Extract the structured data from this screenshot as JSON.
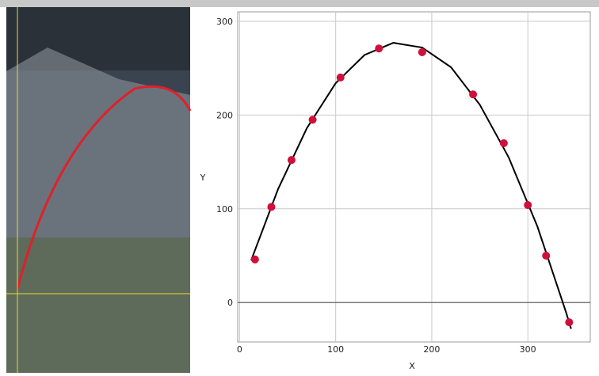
{
  "chart_data": {
    "type": "scatter",
    "x_label": "X",
    "y_label": "Y",
    "xlim": [
      -2,
      365
    ],
    "ylim": [
      -42,
      310
    ],
    "xticks": [
      0,
      100,
      200,
      300
    ],
    "yticks": [
      0,
      100,
      200,
      300
    ],
    "grid": true,
    "series": [
      {
        "color": "#d0103a",
        "x": [
          16,
          33,
          54,
          76,
          105,
          145,
          190,
          243,
          275,
          300,
          319,
          343
        ],
        "values": [
          46,
          102,
          152,
          195,
          240,
          271,
          267,
          222,
          170,
          104,
          50,
          -21
        ]
      },
      {
        "color": "#000000",
        "x": [
          12,
          40,
          70,
          100,
          130,
          160,
          190,
          220,
          250,
          280,
          310,
          340,
          345
        ],
        "values": [
          45,
          121,
          186,
          234,
          264,
          277,
          272,
          251,
          211,
          155,
          81,
          -11,
          -28
        ]
      }
    ]
  }
}
